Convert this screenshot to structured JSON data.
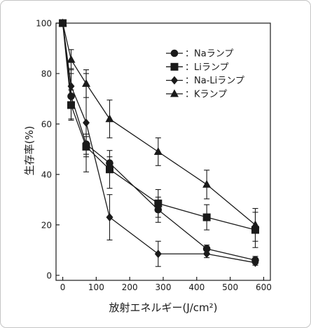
{
  "chart_data": {
    "type": "line",
    "xlabel": "放射エネルギー(J/cm²)",
    "ylabel": "生存率(%)",
    "xlim": [
      -20,
      620
    ],
    "ylim": [
      -2,
      100
    ],
    "xticks": [
      0,
      100,
      200,
      300,
      400,
      500,
      600
    ],
    "yticks": [
      0,
      20,
      40,
      60,
      80,
      100
    ],
    "grid": false,
    "legend": "top-right",
    "legend_separator": "：",
    "color": "#1a1a1a",
    "x": [
      0,
      25,
      70,
      140,
      285,
      430,
      575
    ],
    "series": [
      {
        "name": "Naランプ",
        "marker": "circle",
        "values": [
          100,
          71,
          52,
          44.5,
          26,
          10.5,
          6
        ],
        "errors": [
          0,
          9,
          4,
          2.5,
          5,
          1.5,
          1.5
        ]
      },
      {
        "name": "Liランプ",
        "marker": "square",
        "values": [
          100,
          67.5,
          51,
          42,
          28.5,
          23,
          18
        ],
        "errors": [
          0,
          6,
          4,
          7.5,
          5.5,
          5,
          7
        ]
      },
      {
        "name": "Na-Liランプ",
        "marker": "diamond",
        "values": [
          100,
          75,
          60.5,
          23,
          8.5,
          8.5,
          5
        ],
        "errors": [
          0,
          7,
          19.5,
          9,
          5,
          1.5,
          1
        ]
      },
      {
        "name": "Kランプ",
        "marker": "triangle",
        "values": [
          100,
          85.5,
          76,
          62,
          49,
          36,
          20
        ],
        "errors": [
          0,
          4,
          5.5,
          7.5,
          5.5,
          5.7,
          6.5
        ]
      }
    ]
  },
  "frame_color": "#c4c4c4"
}
